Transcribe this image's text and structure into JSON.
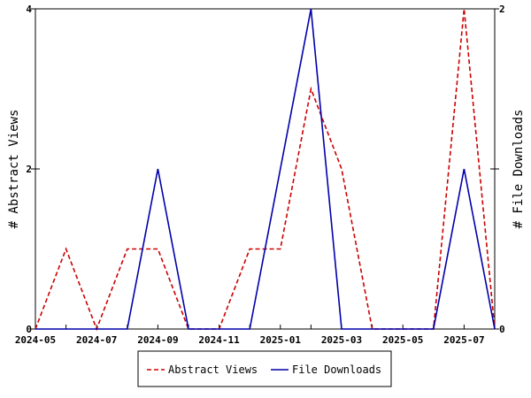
{
  "chart_data": {
    "type": "line",
    "x": [
      "2024-05",
      "2024-06",
      "2024-07",
      "2024-08",
      "2024-09",
      "2024-10",
      "2024-11",
      "2024-12",
      "2025-01",
      "2025-02",
      "2025-03",
      "2025-04",
      "2025-05",
      "2025-06",
      "2025-07",
      "2025-08"
    ],
    "x_tick_labels": [
      "2024-05",
      "2024-07",
      "2024-09",
      "2024-11",
      "2025-01",
      "2025-03",
      "2025-05",
      "2025-07"
    ],
    "series": [
      {
        "name": "Abstract Views",
        "axis": "left",
        "color": "#cc0000",
        "dash": "dashed",
        "values": [
          0,
          1,
          0,
          1,
          1,
          0,
          0,
          1,
          1,
          3,
          2,
          0,
          0,
          0,
          4,
          0
        ]
      },
      {
        "name": "File Downloads",
        "axis": "right",
        "color": "#0000aa",
        "dash": "solid",
        "values": [
          0,
          0,
          0,
          0,
          1,
          0,
          0,
          0,
          1,
          2,
          0,
          0,
          0,
          0,
          1,
          0
        ]
      }
    ],
    "ylabel_left": "# Abstract Views",
    "ylabel_right": "# File Downloads",
    "ylim_left": [
      0,
      4
    ],
    "ylim_right": [
      0,
      2
    ],
    "yticks_left": [
      "0",
      "2",
      "4"
    ],
    "yticks_right": [
      "0",
      "1",
      "2"
    ],
    "yticks_right_labeled": [
      "0",
      "2"
    ],
    "legend_position": "bottom-center",
    "grid": false
  }
}
